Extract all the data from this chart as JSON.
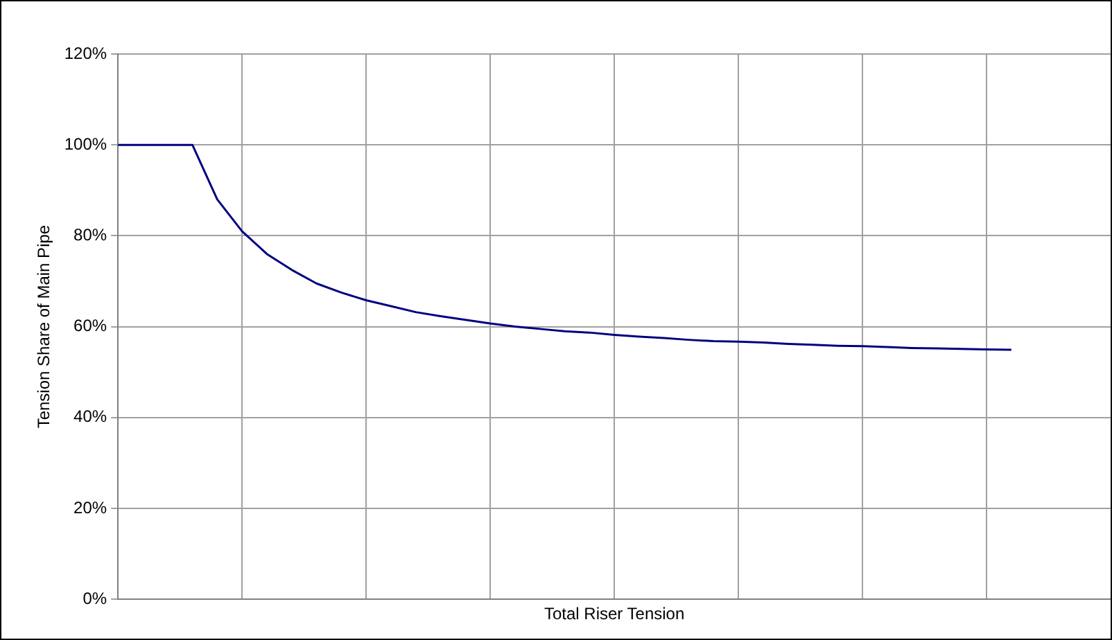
{
  "chart_data": {
    "type": "line",
    "xlabel": "Total Riser Tension",
    "ylabel": "Tension Share of Main Pipe",
    "categories": [
      null,
      null,
      null,
      null,
      null,
      null,
      null,
      null,
      null,
      null,
      null,
      null,
      null,
      null,
      null,
      null,
      null,
      null,
      null,
      null,
      null,
      null,
      null,
      null,
      null,
      null,
      null,
      null,
      null,
      null,
      null,
      null,
      null,
      null,
      null,
      null,
      null
    ],
    "series": [
      {
        "color": "#000080",
        "values": [
          100,
          100,
          100,
          100,
          88,
          81,
          76,
          72.5,
          69.5,
          67.5,
          65.8,
          64.5,
          63.2,
          62.3,
          61.5,
          60.7,
          60,
          59.5,
          59,
          58.7,
          58.2,
          57.8,
          57.5,
          57.1,
          56.8,
          56.7,
          56.5,
          56.2,
          56,
          55.8,
          55.7,
          55.5,
          55.3,
          55.2,
          55.1,
          55,
          54.9
        ]
      }
    ],
    "ylim": [
      0,
      120
    ],
    "yticks": [
      {
        "value": 0,
        "label": "0%"
      },
      {
        "value": 20,
        "label": "20%"
      },
      {
        "value": 40,
        "label": "40%"
      },
      {
        "value": 60,
        "label": "60%"
      },
      {
        "value": 80,
        "label": "80%"
      },
      {
        "value": 100,
        "label": "100%"
      },
      {
        "value": 120,
        "label": "120%"
      }
    ],
    "grid": true,
    "legend": false,
    "marker": "none",
    "line_style": "solid",
    "tick_labels": "y"
  }
}
